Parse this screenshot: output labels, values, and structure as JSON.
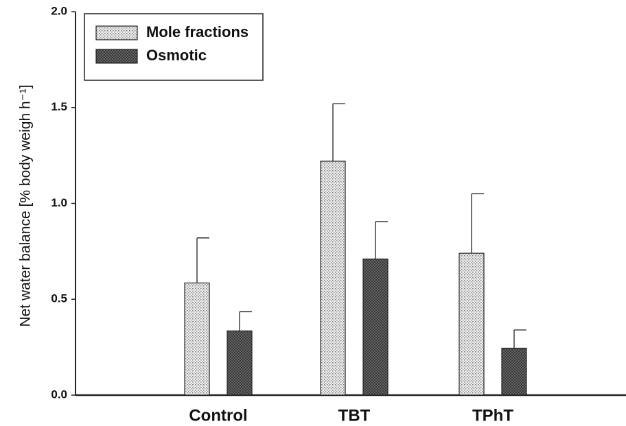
{
  "chart_data": {
    "type": "bar",
    "y_label": "Net water balance [% body weigh h⁻¹]",
    "categories": [
      "Control",
      "TBT",
      "TPhT"
    ],
    "series": [
      {
        "name": "Mole fractions",
        "color": "#d8d8d8",
        "values": [
          0.585,
          1.22,
          0.74
        ],
        "errors": [
          0.235,
          0.3,
          0.31
        ]
      },
      {
        "name": "Osmotic",
        "color": "#555555",
        "values": [
          0.335,
          0.71,
          0.245
        ],
        "errors": [
          0.1,
          0.195,
          0.095
        ]
      }
    ],
    "ylim": [
      0,
      2
    ],
    "yticks": [
      {
        "value": 0,
        "label": "0.0"
      },
      {
        "value": 0.5,
        "label": "0.5"
      },
      {
        "value": 1,
        "label": "1.0"
      },
      {
        "value": 1.5,
        "label": "1.5"
      },
      {
        "value": 2,
        "label": "2.0"
      }
    ],
    "grid": false,
    "legend": "upper left"
  }
}
